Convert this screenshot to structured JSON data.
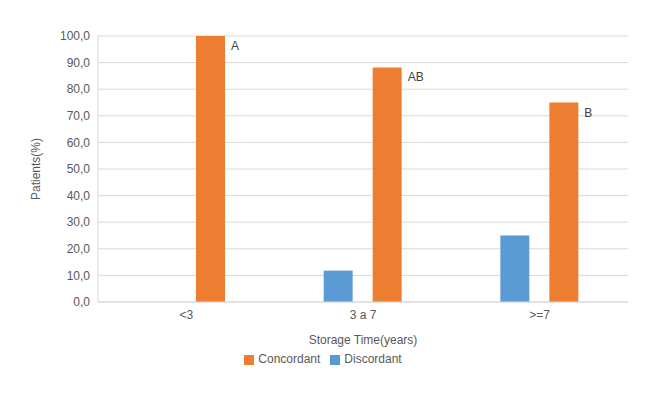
{
  "chart_data": {
    "type": "bar",
    "x_label": "Storage Time(years)",
    "y_label": "Patients(%)",
    "categories": [
      "<3",
      "3 a 7",
      ">=7"
    ],
    "series": [
      {
        "name": "Discordant",
        "color": "#5b9bd5",
        "values": [
          0,
          11.8,
          25
        ]
      },
      {
        "name": "Concordant",
        "color": "#ed7d31",
        "values": [
          100,
          88.2,
          75
        ]
      }
    ],
    "annotations": [
      "A",
      "AB",
      "B"
    ],
    "ylim": [
      0,
      100
    ],
    "yticks": [
      {
        "value": 0,
        "label": "0,0"
      },
      {
        "value": 10,
        "label": "10,0"
      },
      {
        "value": 20,
        "label": "20,0"
      },
      {
        "value": 30,
        "label": "30,0"
      },
      {
        "value": 40,
        "label": "40,0"
      },
      {
        "value": 50,
        "label": "50,0"
      },
      {
        "value": 60,
        "label": "60,0"
      },
      {
        "value": 70,
        "label": "70,0"
      },
      {
        "value": 80,
        "label": "80,0"
      },
      {
        "value": 90,
        "label": "90,0"
      },
      {
        "value": 100,
        "label": "100,0"
      }
    ],
    "grid": true,
    "legend": "bottom"
  }
}
